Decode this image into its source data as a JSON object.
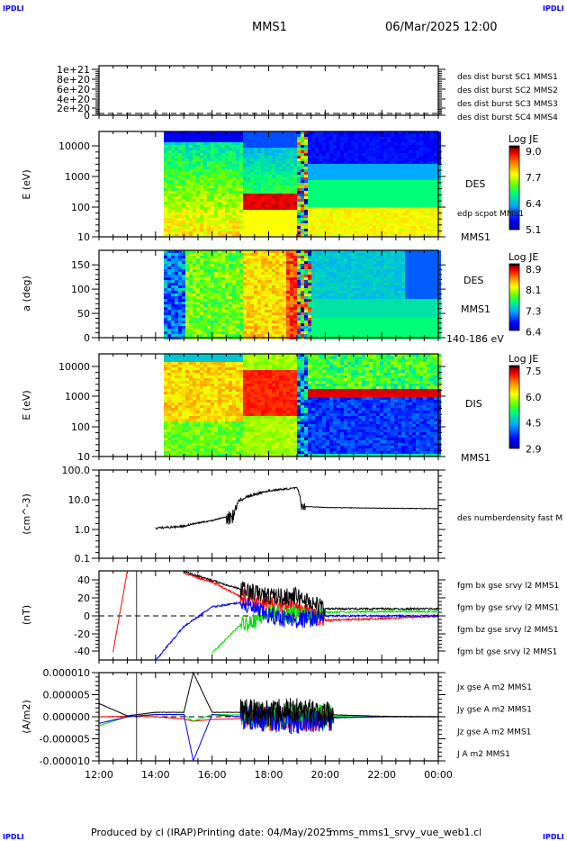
{
  "header": {
    "title": "MMS1",
    "datetime": "06/Mar/2025 12:00",
    "corner_left": "IPDLI",
    "corner_right": "IPDLI"
  },
  "footer": {
    "produced": "Produced by cl (IRAP)",
    "printing": "Printing date: 04/May/2025",
    "file": "mms_mms1_srvy_vue_web1.cl",
    "corner_left": "IPDLI",
    "corner_right": "IPDLI"
  },
  "x_ticks": [
    "12:00",
    "14:00",
    "16:00",
    "18:00",
    "20:00",
    "22:00",
    "00:00"
  ],
  "chart_data": [
    {
      "type": "line",
      "ylabel": "",
      "yticks": [
        "1e+21",
        "8e+20",
        "6e+20",
        "4e+20",
        "2e+20",
        "0"
      ],
      "ylim": [
        0,
        1e+21
      ],
      "legend": [
        {
          "name": "des dist burst SC1 MMS1",
          "color": "#0000ff"
        },
        {
          "name": "des dist burst SC2 MMS2",
          "color": "#ff00ff"
        },
        {
          "name": "des dist burst SC3 MMS3",
          "color": "#ff0000"
        },
        {
          "name": "des dist burst SC4 MMS4",
          "color": "#00dd00"
        }
      ],
      "reference_line": 0
    },
    {
      "type": "heatmap",
      "ylabel": "E (eV)",
      "yscale": "log",
      "yticks": [
        "10000",
        "1000",
        "100",
        "10"
      ],
      "ylim": [
        10,
        30000
      ],
      "labels": [
        "DES",
        "edp scpot MMS1",
        "MMS1"
      ],
      "colorbar": {
        "title": "Log JE",
        "ticks": [
          "9.0",
          "7.7",
          "6.4",
          "5.1"
        ],
        "range": [
          5.1,
          9.2
        ]
      }
    },
    {
      "type": "heatmap",
      "ylabel": "a (deg)",
      "yticks": [
        "150",
        "100",
        "50",
        "0"
      ],
      "ylim": [
        0,
        180
      ],
      "labels": [
        "DES",
        "MMS1",
        "140-186 eV"
      ],
      "colorbar": {
        "title": "Log JE",
        "ticks": [
          "8.9",
          "8.1",
          "7.3",
          "6.4"
        ],
        "range": [
          6.4,
          9.0
        ]
      }
    },
    {
      "type": "heatmap",
      "ylabel": "E (eV)",
      "yscale": "log",
      "yticks": [
        "10000",
        "1000",
        "100",
        "10"
      ],
      "ylim": [
        10,
        20000
      ],
      "labels": [
        "DIS",
        "MMS1"
      ],
      "colorbar": {
        "title": "Log JE",
        "ticks": [
          "7.5",
          "6.0",
          "4.5",
          "2.9"
        ],
        "range": [
          2.9,
          7.7
        ]
      }
    },
    {
      "type": "line",
      "ylabel": "(cm^-3)",
      "yscale": "log",
      "yticks": [
        "100.0",
        "10.0",
        "1.0",
        "0.1"
      ],
      "ylim": [
        0.1,
        100
      ],
      "series": [
        {
          "name": "des numberdensity fast M",
          "color": "#000000",
          "x": [
            "14:00",
            "15:00",
            "16:00",
            "16:45",
            "17:00",
            "17:30",
            "18:00",
            "19:00",
            "19:10",
            "20:00",
            "22:00",
            "00:00"
          ],
          "values": [
            1.1,
            1.3,
            2.0,
            3.0,
            10,
            15,
            20,
            25,
            6,
            5.5,
            5.2,
            5.0
          ]
        }
      ]
    },
    {
      "type": "line",
      "ylabel": "(nT)",
      "yticks": [
        "40",
        "20",
        "0",
        "-20",
        "-40"
      ],
      "ylim": [
        -50,
        50
      ],
      "reference_line": 0,
      "x": [
        "12:00",
        "12:30",
        "13:00",
        "14:00",
        "15:00",
        "16:00",
        "17:00",
        "18:00",
        "19:00",
        "20:00",
        "22:00",
        "00:00"
      ],
      "series": [
        {
          "name": "fgm bx gse srvy l2 MMS1",
          "color": "#ff0000",
          "values": [
            null,
            -40,
            50,
            null,
            48,
            38,
            22,
            12,
            8,
            -5,
            -3,
            0
          ]
        },
        {
          "name": "fgm by gse srvy l2 MMS1",
          "color": "#00dd00",
          "values": [
            null,
            null,
            null,
            null,
            null,
            -42,
            -10,
            2,
            2,
            4,
            5,
            5
          ]
        },
        {
          "name": "fgm bz gse srvy l2 MMS1",
          "color": "#0000ff",
          "values": [
            -50,
            null,
            null,
            -50,
            -12,
            10,
            15,
            0,
            -5,
            0,
            0,
            0
          ]
        },
        {
          "name": "fgm bt gse srvy l2 MMS1",
          "color": "#000000",
          "values": [
            null,
            null,
            null,
            null,
            50,
            40,
            30,
            22,
            22,
            8,
            8,
            8
          ]
        }
      ]
    },
    {
      "type": "line",
      "ylabel": "(A/m2)",
      "yticks": [
        "0.000010",
        "0.000005",
        "0.000000",
        "-0.000005",
        "-0.000010"
      ],
      "ylim": [
        -1e-05,
        1e-05
      ],
      "reference_line": 0,
      "x": [
        "12:00",
        "13:00",
        "14:00",
        "15:00",
        "15:20",
        "16:00",
        "18:00",
        "19:00",
        "20:00",
        "22:00",
        "00:00"
      ],
      "series": [
        {
          "name": "Jx gse A m2 MMS1",
          "color": "#ff0000",
          "values": [
            0.0,
            1e-07,
            0.0,
            -5e-07,
            -1e-06,
            -6e-07,
            -3e-07,
            -5e-07,
            -2e-07,
            0.0,
            0.0
          ]
        },
        {
          "name": "Jy gse A m2 MMS1",
          "color": "#00dd00",
          "values": [
            -2e-06,
            0.0,
            5e-07,
            5e-07,
            -1e-06,
            5e-07,
            3e-07,
            3e-07,
            1e-07,
            0.0,
            0.0
          ]
        },
        {
          "name": "Jz gse A m2 MMS1",
          "color": "#0000ff",
          "values": [
            -1.5e-06,
            0.0,
            5e-07,
            5e-07,
            -1e-05,
            5e-07,
            -5e-07,
            -1e-06,
            -3e-07,
            0.0,
            0.0
          ]
        },
        {
          "name": "J A m2 MMS1",
          "color": "#000000",
          "values": [
            3e-06,
            2e-07,
            1e-06,
            1e-06,
            1e-05,
            1e-06,
            1e-06,
            1.5e-06,
            5e-07,
            1e-07,
            0.0
          ]
        }
      ]
    }
  ]
}
